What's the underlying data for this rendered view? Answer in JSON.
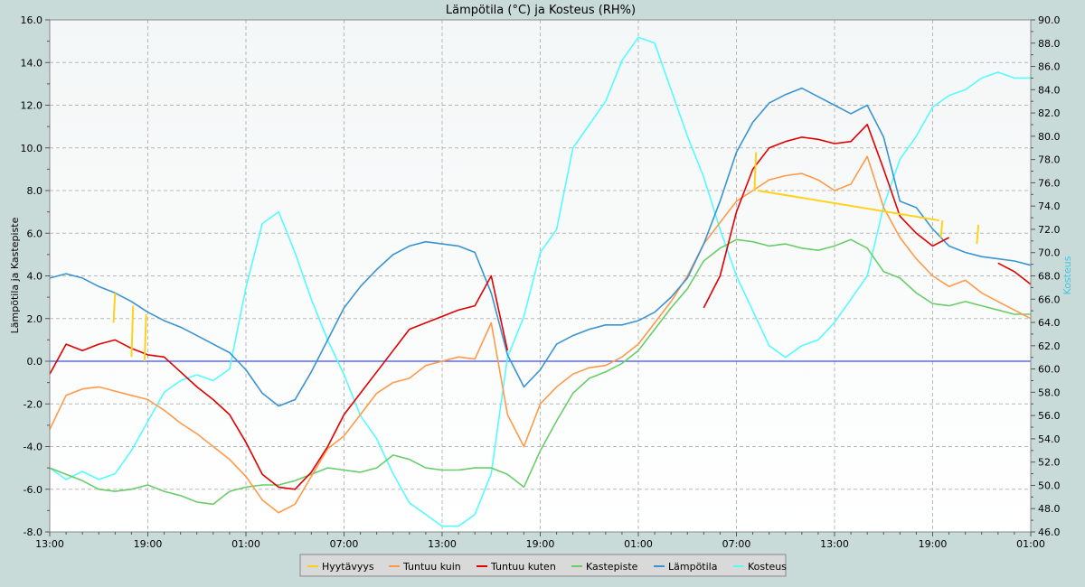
{
  "chart_data": {
    "type": "line",
    "title": "Lämpötila (°C) ja Kosteus (RH%)",
    "ylabel": "Lämpötila ja Kastepiste",
    "y2label": "Kosteus",
    "ylim": [
      -8,
      16
    ],
    "y2lim": [
      46,
      90
    ],
    "grid": true,
    "legend_position": "bottom-center",
    "x_ticks": [
      "13:00",
      "19:00",
      "01:00",
      "07:00",
      "13:00",
      "19:00",
      "01:00",
      "07:00",
      "13:00",
      "19:00",
      "01:00"
    ],
    "x_range_hours": [
      0,
      60
    ],
    "y_ticks": [
      "-8.0",
      "-6.0",
      "-4.0",
      "-2.0",
      "0.0",
      "2.0",
      "4.0",
      "6.0",
      "8.0",
      "10.0",
      "12.0",
      "14.0",
      "16.0"
    ],
    "y2_ticks": [
      "46.0",
      "48.0",
      "50.0",
      "52.0",
      "54.0",
      "56.0",
      "58.0",
      "60.0",
      "62.0",
      "64.0",
      "66.0",
      "68.0",
      "70.0",
      "72.0",
      "74.0",
      "76.0",
      "78.0",
      "80.0",
      "82.0",
      "84.0",
      "86.0",
      "88.0",
      "90.0"
    ],
    "zero_line": 0,
    "colors": {
      "Hyytävyys": "#ffd21a",
      "Tuntuu kuin": "#ff9a4a",
      "Tuntuu kuten": "#e00000",
      "Kastepiste": "#6acd6a",
      "Lämpötila": "#3a94d0",
      "Kosteus": "#55fbff",
      "zero": "#3a50ff"
    },
    "legend": [
      "Hyytävyys",
      "Tuntuu kuin",
      "Tuntuu kuten",
      "Kastepiste",
      "Lämpötila",
      "Kosteus"
    ],
    "series": [
      {
        "name": "Lämpötila",
        "axis": "left",
        "x": [
          0,
          1,
          2,
          3,
          4,
          5,
          6,
          7,
          8,
          9,
          10,
          11,
          12,
          13,
          14,
          15,
          16,
          17,
          18,
          19,
          20,
          21,
          22,
          23,
          24,
          25,
          26,
          27,
          28,
          29,
          30,
          31,
          32,
          33,
          34,
          35,
          36,
          37,
          38,
          39,
          40,
          41,
          42,
          43,
          44,
          45,
          46,
          47,
          48,
          49,
          50,
          51,
          52,
          53,
          54,
          55,
          56,
          57,
          58,
          59,
          60
        ],
        "y": [
          3.9,
          4.1,
          3.9,
          3.5,
          3.2,
          2.8,
          2.3,
          1.9,
          1.6,
          1.2,
          0.8,
          0.4,
          -0.4,
          -1.5,
          -2.1,
          -1.8,
          -0.5,
          1.0,
          2.5,
          3.5,
          4.3,
          5.0,
          5.4,
          5.6,
          5.5,
          5.4,
          5.1,
          3.2,
          0.3,
          -1.2,
          -0.4,
          0.8,
          1.2,
          1.5,
          1.7,
          1.7,
          1.9,
          2.3,
          3.0,
          3.9,
          5.5,
          7.5,
          9.8,
          11.2,
          12.1,
          12.5,
          12.8,
          12.4,
          12.0,
          11.6,
          12.0,
          10.5,
          7.5,
          7.2,
          6.2,
          5.4,
          5.1,
          4.9,
          4.8,
          4.7,
          4.5
        ]
      },
      {
        "name": "Tuntuu kuten",
        "axis": "left",
        "x": [
          0,
          1,
          2,
          3,
          4,
          5,
          6,
          7,
          8,
          9,
          10,
          11,
          12,
          13,
          14,
          15,
          16,
          17,
          18,
          19,
          20,
          21,
          22,
          23,
          24,
          25,
          26,
          27,
          28,
          29,
          30,
          31,
          32,
          33,
          34,
          35,
          36,
          37,
          38,
          39,
          40,
          41,
          42,
          43,
          44,
          45,
          46,
          47,
          48,
          49,
          50,
          51,
          52,
          53,
          54,
          55,
          56,
          57,
          58,
          59,
          60
        ],
        "y": [
          -0.6,
          0.8,
          0.5,
          0.8,
          1.0,
          0.6,
          0.3,
          0.2,
          -0.5,
          -1.2,
          -1.8,
          -2.5,
          -3.8,
          -5.3,
          -5.9,
          -6.0,
          -5.2,
          -4.0,
          -2.5,
          -1.5,
          -0.5,
          0.5,
          1.5,
          1.8,
          2.1,
          2.4,
          2.6,
          4.0,
          0.5,
          null,
          null,
          null,
          null,
          null,
          null,
          null,
          null,
          null,
          null,
          null,
          2.5,
          4.0,
          7.0,
          9.0,
          10.0,
          10.3,
          10.5,
          10.4,
          10.2,
          10.3,
          11.1,
          9.0,
          6.8,
          6.0,
          5.4,
          5.8,
          null,
          null,
          4.6,
          4.2,
          3.6
        ]
      },
      {
        "name": "Tuntuu kuin",
        "axis": "left",
        "x": [
          0,
          1,
          2,
          3,
          4,
          5,
          6,
          7,
          8,
          9,
          10,
          11,
          12,
          13,
          14,
          15,
          16,
          17,
          18,
          19,
          20,
          21,
          22,
          23,
          24,
          25,
          26,
          27,
          28,
          29,
          30,
          31,
          32,
          33,
          34,
          35,
          36,
          37,
          38,
          39,
          40,
          41,
          42,
          43,
          44,
          45,
          46,
          47,
          48,
          49,
          50,
          51,
          52,
          53,
          54,
          55,
          56,
          57,
          58,
          59,
          60
        ],
        "y": [
          -3.2,
          -1.6,
          -1.3,
          -1.2,
          -1.4,
          -1.6,
          -1.8,
          -2.3,
          -2.9,
          -3.4,
          -4.0,
          -4.6,
          -5.4,
          -6.5,
          -7.1,
          -6.7,
          -5.4,
          -4.1,
          -3.5,
          -2.5,
          -1.5,
          -1.0,
          -0.8,
          -0.2,
          0.0,
          0.2,
          0.1,
          1.8,
          -2.5,
          -4.0,
          -2.0,
          -1.2,
          -0.6,
          -0.3,
          -0.2,
          0.2,
          0.8,
          1.8,
          2.8,
          4.0,
          5.5,
          6.5,
          7.5,
          8.0,
          8.5,
          8.7,
          8.8,
          8.5,
          8.0,
          8.3,
          9.6,
          7.2,
          5.8,
          4.8,
          4.0,
          3.5,
          3.8,
          3.2,
          2.8,
          2.4,
          2.0
        ]
      },
      {
        "name": "Kastepiste",
        "axis": "left",
        "x": [
          0,
          1,
          2,
          3,
          4,
          5,
          6,
          7,
          8,
          9,
          10,
          11,
          12,
          13,
          14,
          15,
          16,
          17,
          18,
          19,
          20,
          21,
          22,
          23,
          24,
          25,
          26,
          27,
          28,
          29,
          30,
          31,
          32,
          33,
          34,
          35,
          36,
          37,
          38,
          39,
          40,
          41,
          42,
          43,
          44,
          45,
          46,
          47,
          48,
          49,
          50,
          51,
          52,
          53,
          54,
          55,
          56,
          57,
          58,
          59,
          60
        ],
        "y": [
          -5.0,
          -5.3,
          -5.6,
          -6.0,
          -6.1,
          -6.0,
          -5.8,
          -6.1,
          -6.3,
          -6.6,
          -6.7,
          -6.1,
          -5.9,
          -5.8,
          -5.8,
          -5.6,
          -5.3,
          -5.0,
          -5.1,
          -5.2,
          -5.0,
          -4.4,
          -4.6,
          -5.0,
          -5.1,
          -5.1,
          -5.0,
          -5.0,
          -5.3,
          -5.9,
          -4.2,
          -2.8,
          -1.5,
          -0.8,
          -0.5,
          -0.1,
          0.5,
          1.5,
          2.5,
          3.4,
          4.7,
          5.3,
          5.7,
          5.6,
          5.4,
          5.5,
          5.3,
          5.2,
          5.4,
          5.7,
          5.3,
          4.2,
          3.9,
          3.2,
          2.7,
          2.6,
          2.8,
          2.6,
          2.4,
          2.2,
          2.2
        ]
      },
      {
        "name": "Kosteus",
        "axis": "right",
        "x": [
          0,
          1,
          2,
          3,
          4,
          5,
          6,
          7,
          8,
          9,
          10,
          11,
          12,
          13,
          14,
          15,
          16,
          17,
          18,
          19,
          20,
          21,
          22,
          23,
          24,
          25,
          26,
          27,
          28,
          29,
          30,
          31,
          32,
          33,
          34,
          35,
          36,
          37,
          38,
          39,
          40,
          41,
          42,
          43,
          44,
          45,
          46,
          47,
          48,
          49,
          50,
          51,
          52,
          53,
          54,
          55,
          56,
          57,
          58,
          59,
          60
        ],
        "y": [
          51.5,
          50.5,
          51.2,
          50.5,
          51.0,
          53.0,
          55.5,
          58.0,
          59.0,
          59.5,
          59.0,
          60.0,
          67.0,
          72.5,
          73.5,
          70.0,
          66.0,
          62.5,
          59.5,
          56.0,
          54.0,
          51.0,
          48.5,
          47.5,
          46.5,
          46.5,
          47.5,
          51.0,
          61.0,
          64.5,
          70.0,
          72.0,
          79.0,
          81.0,
          83.0,
          86.5,
          88.5,
          88.0,
          84.0,
          80.0,
          76.5,
          72.0,
          68.0,
          65.0,
          62.0,
          61.0,
          62.0,
          62.5,
          64.0,
          66.0,
          68.0,
          74.0,
          78.0,
          80.0,
          82.5,
          83.5,
          84.0,
          85.0,
          85.5,
          85.0,
          85.0
        ]
      },
      {
        "name": "Hyytävyys",
        "axis": "left",
        "x": [
          3.9,
          4.0,
          5.0,
          5.1,
          5.8,
          5.9,
          43.1,
          43.2,
          43.3,
          54.4,
          54.5,
          54.6,
          56.7,
          56.8
        ],
        "y": [
          1.8,
          3.2,
          0.2,
          2.6,
          0.0,
          2.2,
          8.0,
          9.8,
          8.0,
          6.6,
          5.8,
          6.6,
          5.5,
          6.4
        ]
      }
    ]
  }
}
